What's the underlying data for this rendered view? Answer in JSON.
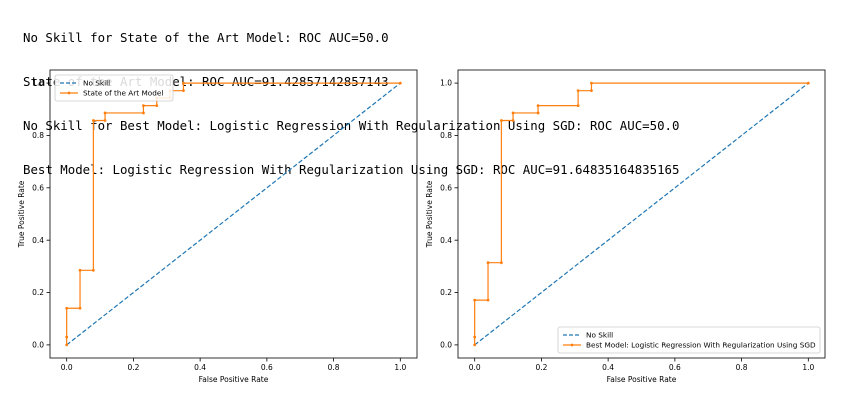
{
  "output_lines": [
    "No Skill for State of the Art Model: ROC AUC=50.0",
    "State of the Art Model: ROC AUC=91.42857142857143",
    "No Skill for Best Model: Logistic Regression With Regularization Using SGD: ROC AUC=50.0",
    "Best Model: Logistic Regression With Regularization Using SGD: ROC AUC=91.64835164835165"
  ],
  "colors": {
    "no_skill": "#1f77b4",
    "model": "#ff7f0e"
  },
  "chart_data": [
    {
      "type": "line",
      "xlabel": "False Positive Rate",
      "ylabel": "True Positive Rate",
      "xlim": [
        -0.05,
        1.05
      ],
      "ylim": [
        -0.05,
        1.05
      ],
      "xticks": [
        "0.0",
        "0.2",
        "0.4",
        "0.6",
        "0.8",
        "1.0"
      ],
      "yticks": [
        "0.0",
        "0.2",
        "0.4",
        "0.6",
        "0.8",
        "1.0"
      ],
      "legend_position": "upper left",
      "series": [
        {
          "name": "No Skill",
          "style": "dashed",
          "x": [
            0,
            1
          ],
          "y": [
            0,
            1
          ]
        },
        {
          "name": "State of the Art Model",
          "style": "solid-dot",
          "x": [
            0,
            0,
            0,
            0.04,
            0.04,
            0.08,
            0.08,
            0.115,
            0.115,
            0.23,
            0.23,
            0.27,
            0.27,
            0.31,
            0.31,
            0.35,
            0.35,
            1
          ],
          "y": [
            0,
            0.03,
            0.14,
            0.14,
            0.285,
            0.285,
            0.857,
            0.857,
            0.886,
            0.886,
            0.914,
            0.914,
            0.943,
            0.943,
            0.971,
            0.971,
            1,
            1
          ]
        }
      ]
    },
    {
      "type": "line",
      "xlabel": "False Positive Rate",
      "ylabel": "True Positive Rate",
      "xlim": [
        -0.05,
        1.05
      ],
      "ylim": [
        -0.05,
        1.05
      ],
      "xticks": [
        "0.0",
        "0.2",
        "0.4",
        "0.6",
        "0.8",
        "1.0"
      ],
      "yticks": [
        "0.0",
        "0.2",
        "0.4",
        "0.6",
        "0.8",
        "1.0"
      ],
      "legend_position": "lower right",
      "series": [
        {
          "name": "No Skill",
          "style": "dashed",
          "x": [
            0,
            1
          ],
          "y": [
            0,
            1
          ]
        },
        {
          "name": "Best Model: Logistic Regression With Regularization Using SGD",
          "style": "solid-dot",
          "x": [
            0,
            0,
            0,
            0.04,
            0.04,
            0.08,
            0.08,
            0.115,
            0.115,
            0.19,
            0.19,
            0.31,
            0.31,
            0.35,
            0.35,
            1
          ],
          "y": [
            0,
            0.03,
            0.171,
            0.171,
            0.314,
            0.314,
            0.857,
            0.857,
            0.886,
            0.886,
            0.914,
            0.914,
            0.971,
            0.971,
            1,
            1
          ]
        }
      ]
    }
  ]
}
